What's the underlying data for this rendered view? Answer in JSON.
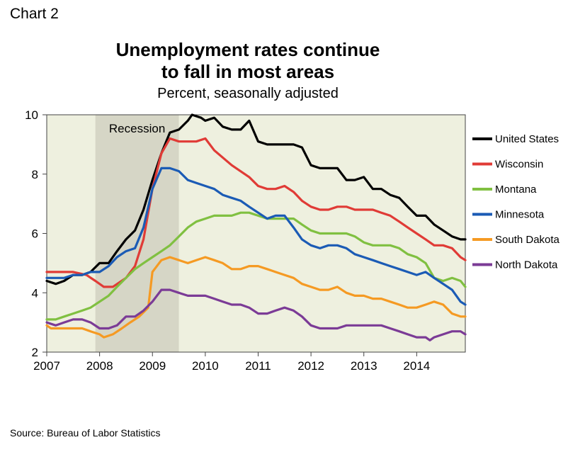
{
  "chart_label": "Chart 2",
  "chart_data": {
    "type": "line",
    "title_line1": "Unemployment rates continue",
    "title_line2": "to fall in most areas",
    "subtitle": "Percent, seasonally adjusted",
    "source": "Source: Bureau of Labor Statistics",
    "xlim": [
      2007,
      2014.92
    ],
    "ylim": [
      2,
      10
    ],
    "x_ticks": [
      "2007",
      "2008",
      "2009",
      "2010",
      "2011",
      "2012",
      "2013",
      "2014"
    ],
    "y_ticks": [
      "2",
      "4",
      "6",
      "8",
      "10"
    ],
    "recession": {
      "label": "Recession",
      "start": 2007.92,
      "end": 2009.5
    },
    "colors": {
      "plot_bg": "#eef0df",
      "recession": "#d6d6c6"
    },
    "series": [
      {
        "name": "United States",
        "color": "#000000",
        "points": [
          [
            2007.0,
            4.4
          ],
          [
            2007.17,
            4.3
          ],
          [
            2007.33,
            4.4
          ],
          [
            2007.5,
            4.6
          ],
          [
            2007.67,
            4.6
          ],
          [
            2007.83,
            4.7
          ],
          [
            2008.0,
            5.0
          ],
          [
            2008.17,
            5.0
          ],
          [
            2008.33,
            5.4
          ],
          [
            2008.5,
            5.8
          ],
          [
            2008.67,
            6.1
          ],
          [
            2008.83,
            6.8
          ],
          [
            2009.0,
            7.8
          ],
          [
            2009.17,
            8.7
          ],
          [
            2009.33,
            9.4
          ],
          [
            2009.5,
            9.5
          ],
          [
            2009.67,
            9.8
          ],
          [
            2009.75,
            10.0
          ],
          [
            2009.92,
            9.9
          ],
          [
            2010.0,
            9.8
          ],
          [
            2010.17,
            9.9
          ],
          [
            2010.33,
            9.6
          ],
          [
            2010.5,
            9.5
          ],
          [
            2010.67,
            9.5
          ],
          [
            2010.83,
            9.8
          ],
          [
            2011.0,
            9.1
          ],
          [
            2011.17,
            9.0
          ],
          [
            2011.33,
            9.0
          ],
          [
            2011.5,
            9.0
          ],
          [
            2011.67,
            9.0
          ],
          [
            2011.83,
            8.9
          ],
          [
            2012.0,
            8.3
          ],
          [
            2012.17,
            8.2
          ],
          [
            2012.33,
            8.2
          ],
          [
            2012.5,
            8.2
          ],
          [
            2012.67,
            7.8
          ],
          [
            2012.83,
            7.8
          ],
          [
            2013.0,
            7.9
          ],
          [
            2013.17,
            7.5
          ],
          [
            2013.33,
            7.5
          ],
          [
            2013.5,
            7.3
          ],
          [
            2013.67,
            7.2
          ],
          [
            2013.83,
            6.9
          ],
          [
            2014.0,
            6.6
          ],
          [
            2014.17,
            6.6
          ],
          [
            2014.33,
            6.3
          ],
          [
            2014.5,
            6.1
          ],
          [
            2014.67,
            5.9
          ],
          [
            2014.83,
            5.8
          ],
          [
            2014.92,
            5.8
          ]
        ]
      },
      {
        "name": "Wisconsin",
        "color": "#e03b36",
        "points": [
          [
            2007.0,
            4.7
          ],
          [
            2007.33,
            4.7
          ],
          [
            2007.5,
            4.7
          ],
          [
            2007.75,
            4.6
          ],
          [
            2007.92,
            4.4
          ],
          [
            2008.08,
            4.2
          ],
          [
            2008.25,
            4.2
          ],
          [
            2008.5,
            4.5
          ],
          [
            2008.67,
            4.9
          ],
          [
            2008.83,
            5.8
          ],
          [
            2009.0,
            7.5
          ],
          [
            2009.17,
            8.7
          ],
          [
            2009.33,
            9.2
          ],
          [
            2009.5,
            9.1
          ],
          [
            2009.67,
            9.1
          ],
          [
            2009.83,
            9.1
          ],
          [
            2010.0,
            9.2
          ],
          [
            2010.17,
            8.8
          ],
          [
            2010.5,
            8.3
          ],
          [
            2010.83,
            7.9
          ],
          [
            2011.0,
            7.6
          ],
          [
            2011.17,
            7.5
          ],
          [
            2011.33,
            7.5
          ],
          [
            2011.5,
            7.6
          ],
          [
            2011.67,
            7.4
          ],
          [
            2011.83,
            7.1
          ],
          [
            2012.0,
            6.9
          ],
          [
            2012.17,
            6.8
          ],
          [
            2012.33,
            6.8
          ],
          [
            2012.5,
            6.9
          ],
          [
            2012.67,
            6.9
          ],
          [
            2012.83,
            6.8
          ],
          [
            2013.0,
            6.8
          ],
          [
            2013.17,
            6.8
          ],
          [
            2013.33,
            6.7
          ],
          [
            2013.5,
            6.6
          ],
          [
            2013.67,
            6.4
          ],
          [
            2013.83,
            6.2
          ],
          [
            2014.0,
            6.0
          ],
          [
            2014.17,
            5.8
          ],
          [
            2014.33,
            5.6
          ],
          [
            2014.5,
            5.6
          ],
          [
            2014.67,
            5.5
          ],
          [
            2014.83,
            5.2
          ],
          [
            2014.92,
            5.1
          ]
        ]
      },
      {
        "name": "Montana",
        "color": "#80c041",
        "points": [
          [
            2007.0,
            3.1
          ],
          [
            2007.17,
            3.1
          ],
          [
            2007.33,
            3.2
          ],
          [
            2007.5,
            3.3
          ],
          [
            2007.67,
            3.4
          ],
          [
            2007.83,
            3.5
          ],
          [
            2008.0,
            3.7
          ],
          [
            2008.17,
            3.9
          ],
          [
            2008.33,
            4.2
          ],
          [
            2008.5,
            4.5
          ],
          [
            2008.67,
            4.8
          ],
          [
            2008.83,
            5.0
          ],
          [
            2009.0,
            5.2
          ],
          [
            2009.17,
            5.4
          ],
          [
            2009.33,
            5.6
          ],
          [
            2009.5,
            5.9
          ],
          [
            2009.67,
            6.2
          ],
          [
            2009.83,
            6.4
          ],
          [
            2010.0,
            6.5
          ],
          [
            2010.17,
            6.6
          ],
          [
            2010.33,
            6.6
          ],
          [
            2010.5,
            6.6
          ],
          [
            2010.67,
            6.7
          ],
          [
            2010.83,
            6.7
          ],
          [
            2011.0,
            6.6
          ],
          [
            2011.17,
            6.5
          ],
          [
            2011.33,
            6.5
          ],
          [
            2011.5,
            6.5
          ],
          [
            2011.67,
            6.5
          ],
          [
            2011.83,
            6.3
          ],
          [
            2012.0,
            6.1
          ],
          [
            2012.17,
            6.0
          ],
          [
            2012.33,
            6.0
          ],
          [
            2012.5,
            6.0
          ],
          [
            2012.67,
            6.0
          ],
          [
            2012.83,
            5.9
          ],
          [
            2013.0,
            5.7
          ],
          [
            2013.17,
            5.6
          ],
          [
            2013.33,
            5.6
          ],
          [
            2013.5,
            5.6
          ],
          [
            2013.67,
            5.5
          ],
          [
            2013.83,
            5.3
          ],
          [
            2014.0,
            5.2
          ],
          [
            2014.17,
            5.0
          ],
          [
            2014.33,
            4.5
          ],
          [
            2014.5,
            4.4
          ],
          [
            2014.67,
            4.5
          ],
          [
            2014.83,
            4.4
          ],
          [
            2014.92,
            4.2
          ]
        ]
      },
      {
        "name": "Minnesota",
        "color": "#1b5bb5",
        "points": [
          [
            2007.0,
            4.5
          ],
          [
            2007.17,
            4.5
          ],
          [
            2007.33,
            4.5
          ],
          [
            2007.5,
            4.6
          ],
          [
            2007.67,
            4.6
          ],
          [
            2007.83,
            4.7
          ],
          [
            2008.0,
            4.7
          ],
          [
            2008.17,
            4.9
          ],
          [
            2008.33,
            5.2
          ],
          [
            2008.5,
            5.4
          ],
          [
            2008.67,
            5.5
          ],
          [
            2008.83,
            6.2
          ],
          [
            2009.0,
            7.5
          ],
          [
            2009.17,
            8.2
          ],
          [
            2009.33,
            8.2
          ],
          [
            2009.5,
            8.1
          ],
          [
            2009.67,
            7.8
          ],
          [
            2009.83,
            7.7
          ],
          [
            2010.0,
            7.6
          ],
          [
            2010.17,
            7.5
          ],
          [
            2010.33,
            7.3
          ],
          [
            2010.5,
            7.2
          ],
          [
            2010.67,
            7.1
          ],
          [
            2010.83,
            6.9
          ],
          [
            2011.0,
            6.7
          ],
          [
            2011.17,
            6.5
          ],
          [
            2011.33,
            6.6
          ],
          [
            2011.5,
            6.6
          ],
          [
            2011.67,
            6.2
          ],
          [
            2011.83,
            5.8
          ],
          [
            2012.0,
            5.6
          ],
          [
            2012.17,
            5.5
          ],
          [
            2012.33,
            5.6
          ],
          [
            2012.5,
            5.6
          ],
          [
            2012.67,
            5.5
          ],
          [
            2012.83,
            5.3
          ],
          [
            2013.0,
            5.2
          ],
          [
            2013.17,
            5.1
          ],
          [
            2013.33,
            5.0
          ],
          [
            2013.5,
            4.9
          ],
          [
            2013.67,
            4.8
          ],
          [
            2013.83,
            4.7
          ],
          [
            2014.0,
            4.6
          ],
          [
            2014.17,
            4.7
          ],
          [
            2014.33,
            4.5
          ],
          [
            2014.5,
            4.3
          ],
          [
            2014.67,
            4.1
          ],
          [
            2014.83,
            3.7
          ],
          [
            2014.92,
            3.6
          ]
        ]
      },
      {
        "name": "South Dakota",
        "color": "#f59a23",
        "points": [
          [
            2007.0,
            2.9
          ],
          [
            2007.08,
            2.8
          ],
          [
            2007.33,
            2.8
          ],
          [
            2007.67,
            2.8
          ],
          [
            2007.83,
            2.7
          ],
          [
            2008.0,
            2.6
          ],
          [
            2008.08,
            2.5
          ],
          [
            2008.25,
            2.6
          ],
          [
            2008.42,
            2.8
          ],
          [
            2008.58,
            3.0
          ],
          [
            2008.75,
            3.2
          ],
          [
            2008.92,
            3.5
          ],
          [
            2009.0,
            4.7
          ],
          [
            2009.17,
            5.1
          ],
          [
            2009.33,
            5.2
          ],
          [
            2009.5,
            5.1
          ],
          [
            2009.67,
            5.0
          ],
          [
            2009.83,
            5.1
          ],
          [
            2010.0,
            5.2
          ],
          [
            2010.17,
            5.1
          ],
          [
            2010.33,
            5.0
          ],
          [
            2010.5,
            4.8
          ],
          [
            2010.67,
            4.8
          ],
          [
            2010.83,
            4.9
          ],
          [
            2011.0,
            4.9
          ],
          [
            2011.17,
            4.8
          ],
          [
            2011.33,
            4.7
          ],
          [
            2011.5,
            4.6
          ],
          [
            2011.67,
            4.5
          ],
          [
            2011.83,
            4.3
          ],
          [
            2012.0,
            4.2
          ],
          [
            2012.17,
            4.1
          ],
          [
            2012.33,
            4.1
          ],
          [
            2012.5,
            4.2
          ],
          [
            2012.67,
            4.0
          ],
          [
            2012.83,
            3.9
          ],
          [
            2013.0,
            3.9
          ],
          [
            2013.17,
            3.8
          ],
          [
            2013.33,
            3.8
          ],
          [
            2013.5,
            3.7
          ],
          [
            2013.67,
            3.6
          ],
          [
            2013.83,
            3.5
          ],
          [
            2014.0,
            3.5
          ],
          [
            2014.17,
            3.6
          ],
          [
            2014.33,
            3.7
          ],
          [
            2014.5,
            3.6
          ],
          [
            2014.67,
            3.3
          ],
          [
            2014.83,
            3.2
          ],
          [
            2014.92,
            3.2
          ]
        ]
      },
      {
        "name": "North Dakota",
        "color": "#7b3b96",
        "points": [
          [
            2007.0,
            3.0
          ],
          [
            2007.17,
            2.9
          ],
          [
            2007.33,
            3.0
          ],
          [
            2007.5,
            3.1
          ],
          [
            2007.67,
            3.1
          ],
          [
            2007.83,
            3.0
          ],
          [
            2008.0,
            2.8
          ],
          [
            2008.17,
            2.8
          ],
          [
            2008.33,
            2.9
          ],
          [
            2008.5,
            3.2
          ],
          [
            2008.67,
            3.2
          ],
          [
            2008.83,
            3.4
          ],
          [
            2009.0,
            3.7
          ],
          [
            2009.17,
            4.1
          ],
          [
            2009.33,
            4.1
          ],
          [
            2009.5,
            4.0
          ],
          [
            2009.67,
            3.9
          ],
          [
            2009.83,
            3.9
          ],
          [
            2010.0,
            3.9
          ],
          [
            2010.17,
            3.8
          ],
          [
            2010.33,
            3.7
          ],
          [
            2010.5,
            3.6
          ],
          [
            2010.67,
            3.6
          ],
          [
            2010.83,
            3.5
          ],
          [
            2011.0,
            3.3
          ],
          [
            2011.17,
            3.3
          ],
          [
            2011.33,
            3.4
          ],
          [
            2011.5,
            3.5
          ],
          [
            2011.67,
            3.4
          ],
          [
            2011.83,
            3.2
          ],
          [
            2012.0,
            2.9
          ],
          [
            2012.17,
            2.8
          ],
          [
            2012.33,
            2.8
          ],
          [
            2012.5,
            2.8
          ],
          [
            2012.67,
            2.9
          ],
          [
            2012.83,
            2.9
          ],
          [
            2013.0,
            2.9
          ],
          [
            2013.17,
            2.9
          ],
          [
            2013.33,
            2.9
          ],
          [
            2013.5,
            2.8
          ],
          [
            2013.67,
            2.7
          ],
          [
            2013.83,
            2.6
          ],
          [
            2014.0,
            2.5
          ],
          [
            2014.17,
            2.5
          ],
          [
            2014.25,
            2.4
          ],
          [
            2014.33,
            2.5
          ],
          [
            2014.5,
            2.6
          ],
          [
            2014.67,
            2.7
          ],
          [
            2014.83,
            2.7
          ],
          [
            2014.92,
            2.6
          ]
        ]
      }
    ]
  }
}
